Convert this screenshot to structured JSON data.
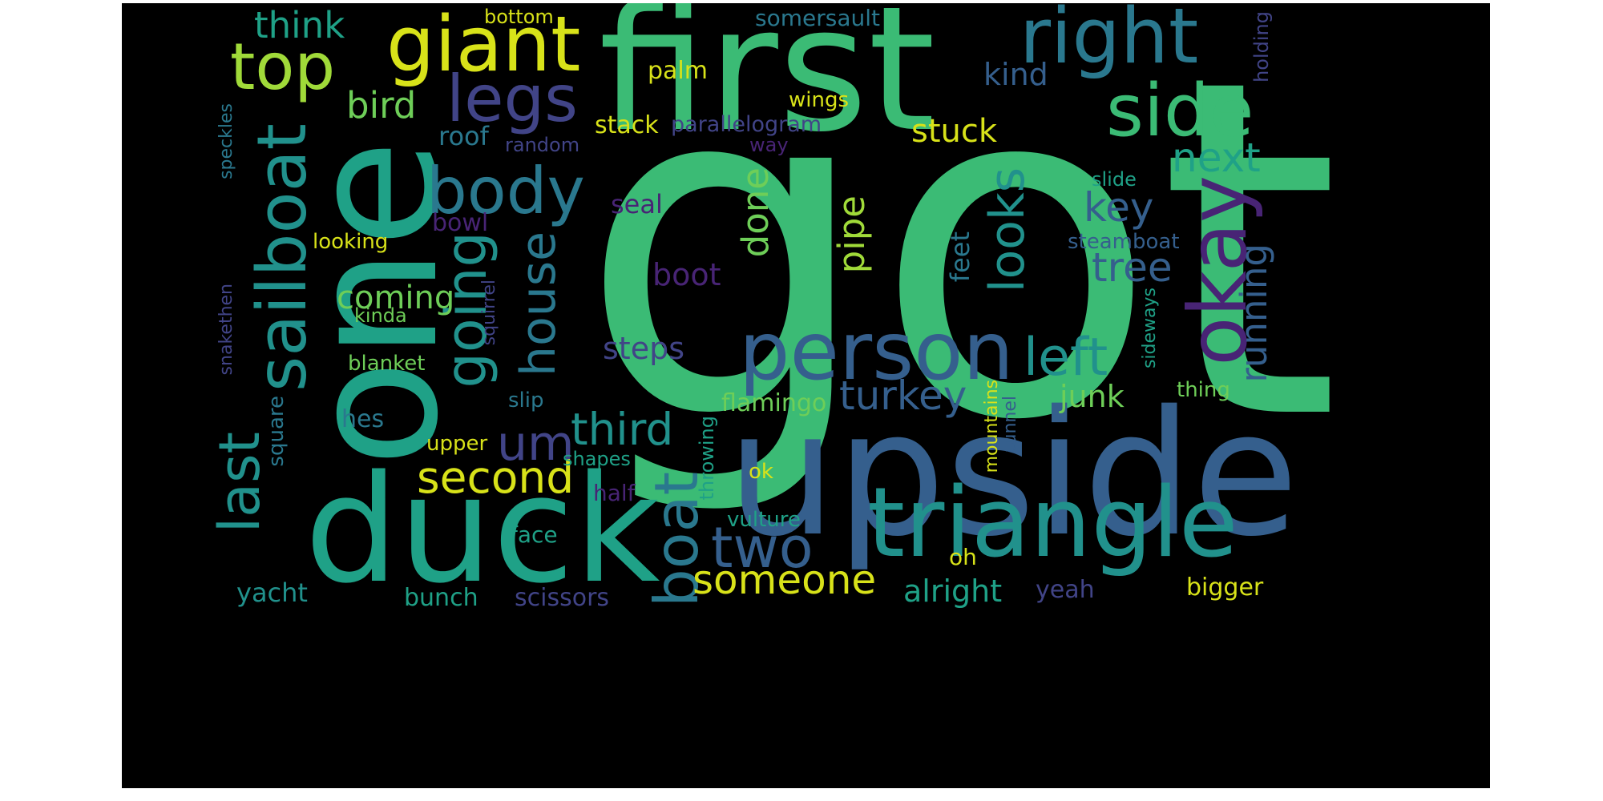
{
  "palette": {
    "background": "#000000",
    "yellow": "#d8e219",
    "lime": "#a0da39",
    "lightgreen": "#6ece58",
    "green": "#3bbb75",
    "teal": "#1fa187",
    "cyan": "#21918c",
    "blueteal": "#2a788e",
    "blue": "#355f8d",
    "indigo": "#414487",
    "purple": "#482475"
  },
  "words": {
    "got": "got",
    "first": "first",
    "one": "one",
    "upside": "upside",
    "duck": "duck",
    "triangle": "triangle",
    "person": "person",
    "okay": "okay",
    "sailboat": "sailboat",
    "giant": "giant",
    "right": "right",
    "side": "side",
    "top": "top",
    "legs": "legs",
    "body": "body",
    "going": "going",
    "house": "house",
    "boat": "boat",
    "two": "two",
    "last": "last",
    "looks": "looks",
    "left": "left",
    "um": "um",
    "third": "third",
    "second": "second",
    "someone": "someone",
    "turkey": "turkey",
    "tree": "tree",
    "key": "key",
    "next": "next",
    "running": "running",
    "think": "think",
    "bird": "bird",
    "pipe": "pipe",
    "done": "done",
    "stuck": "stuck",
    "kind": "kind",
    "alright": "alright",
    "junk": "junk",
    "coming": "coming",
    "steps": "steps",
    "boot": "boot",
    "roof": "roof",
    "stack": "stack",
    "palm": "palm",
    "wings": "wings",
    "parallelogram": "parallelogram",
    "random": "random",
    "way": "way",
    "seal": "seal",
    "bowl": "bowl",
    "looking": "looking",
    "kinda": "kinda",
    "blanket": "blanket",
    "hes": "hes",
    "slip": "slip",
    "flamingo": "flamingo",
    "feet": "feet",
    "mountains": "mountains",
    "tunnel": "tunnel",
    "throwing": "throwing",
    "upper": "upper",
    "shapes": "shapes",
    "half": "half",
    "face": "face",
    "vulture": "vulture",
    "ok": "ok",
    "oh": "oh",
    "bunch": "bunch",
    "scissors": "scissors",
    "yacht": "yacht",
    "yeah": "yeah",
    "bigger": "bigger",
    "thing": "thing",
    "sideways": "sideways",
    "slide": "slide",
    "steamboat": "steamboat",
    "holding": "holding",
    "somersault": "somersault",
    "bottom": "bottom",
    "speckles": "speckles",
    "snakethen": "snakethen",
    "square": "square",
    "squirrel": "squirrel"
  }
}
